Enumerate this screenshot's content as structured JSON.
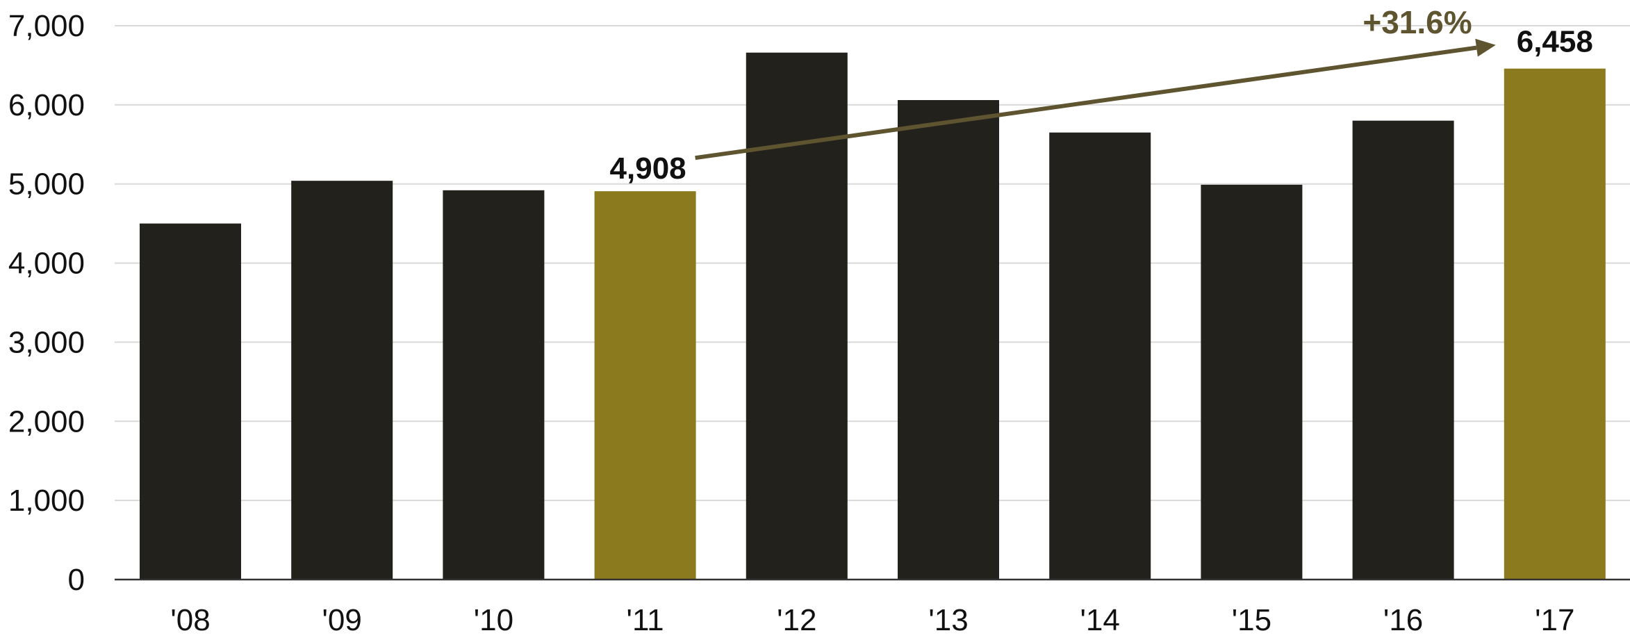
{
  "chart_data": {
    "type": "bar",
    "categories": [
      "'08",
      "'09",
      "'10",
      "'11",
      "'12",
      "'13",
      "'14",
      "'15",
      "'16",
      "'17"
    ],
    "values": [
      4500,
      5040,
      4920,
      4908,
      6660,
      6060,
      5650,
      4990,
      5800,
      6458
    ],
    "highlighted": [
      "'11",
      "'17"
    ],
    "ylim": [
      0,
      7000
    ],
    "yticks": [
      0,
      1000,
      2000,
      3000,
      4000,
      5000,
      6000,
      7000
    ],
    "ytick_labels": [
      "0",
      "1,000",
      "2,000",
      "3,000",
      "4,000",
      "5,000",
      "6,000",
      "7,000"
    ],
    "grid": true,
    "data_labels": [
      {
        "category": "'11",
        "text": "4,908"
      },
      {
        "category": "'17",
        "text": "6,458"
      }
    ],
    "annotation": {
      "text": "+31.6%",
      "from": "'11",
      "to": "'17"
    },
    "colors": {
      "bar": "#22211b",
      "highlight": "#8b7a1e",
      "arrow": "#5e5430",
      "grid": "#d9d9d9",
      "axis": "#333333"
    }
  }
}
